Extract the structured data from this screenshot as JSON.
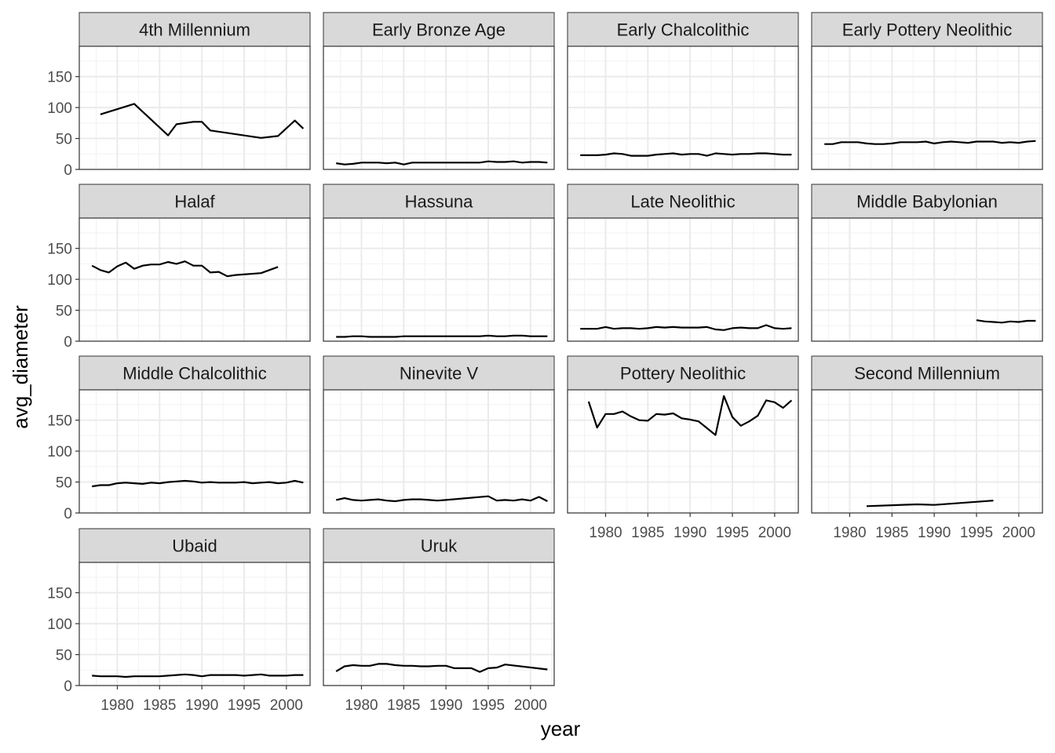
{
  "chart_data": {
    "type": "line",
    "title": "",
    "xlabel": "year",
    "ylabel": "avg_diameter",
    "xlim": [
      1975.5,
      2002.8
    ],
    "ylim": [
      0,
      199
    ],
    "x_ticks": [
      1980,
      1985,
      1990,
      1995,
      2000
    ],
    "y_ticks": [
      0,
      50,
      100,
      150
    ],
    "grid": true,
    "facet_columns": 4,
    "series": [
      {
        "name": "4th Millennium",
        "x": [
          1978,
          1982,
          1986,
          1987,
          1989,
          1990,
          1991,
          1997,
          1999,
          2001,
          2002
        ],
        "y": [
          89,
          106,
          55,
          73,
          77,
          77,
          63,
          51,
          54,
          79,
          66
        ]
      },
      {
        "name": "Early Bronze Age",
        "x": [
          1977,
          1978,
          1979,
          1980,
          1981,
          1982,
          1983,
          1984,
          1985,
          1986,
          1987,
          1988,
          1989,
          1990,
          1991,
          1992,
          1993,
          1994,
          1995,
          1996,
          1997,
          1998,
          1999,
          2000,
          2001,
          2002
        ],
        "y": [
          10,
          8,
          9,
          11,
          11,
          11,
          10,
          11,
          8,
          11,
          11,
          11,
          11,
          11,
          11,
          11,
          11,
          11,
          13,
          12,
          12,
          13,
          11,
          12,
          12,
          11
        ]
      },
      {
        "name": "Early Chalcolithic",
        "x": [
          1977,
          1978,
          1979,
          1980,
          1981,
          1982,
          1983,
          1984,
          1985,
          1986,
          1987,
          1988,
          1989,
          1990,
          1991,
          1992,
          1993,
          1994,
          1995,
          1996,
          1997,
          1998,
          1999,
          2000,
          2001,
          2002
        ],
        "y": [
          23,
          23,
          23,
          24,
          26,
          25,
          22,
          22,
          22,
          24,
          25,
          26,
          24,
          25,
          25,
          22,
          26,
          25,
          24,
          25,
          25,
          26,
          26,
          25,
          24,
          24
        ]
      },
      {
        "name": "Early Pottery Neolithic",
        "x": [
          1977,
          1978,
          1979,
          1980,
          1981,
          1982,
          1983,
          1984,
          1985,
          1986,
          1987,
          1988,
          1989,
          1990,
          1991,
          1992,
          1993,
          1994,
          1995,
          1996,
          1997,
          1998,
          1999,
          2000,
          2001,
          2002
        ],
        "y": [
          41,
          41,
          44,
          44,
          44,
          42,
          41,
          41,
          42,
          44,
          44,
          44,
          45,
          42,
          44,
          45,
          44,
          43,
          45,
          45,
          45,
          43,
          44,
          43,
          45,
          46
        ]
      },
      {
        "name": "Halaf",
        "x": [
          1977,
          1978,
          1979,
          1980,
          1981,
          1982,
          1983,
          1984,
          1985,
          1986,
          1987,
          1988,
          1989,
          1990,
          1991,
          1992,
          1993,
          1994,
          1997,
          1999
        ],
        "y": [
          122,
          115,
          111,
          121,
          127,
          117,
          122,
          124,
          124,
          128,
          125,
          129,
          122,
          122,
          111,
          112,
          105,
          107,
          110,
          120
        ]
      },
      {
        "name": "Hassuna",
        "x": [
          1977,
          1978,
          1979,
          1980,
          1981,
          1982,
          1983,
          1984,
          1985,
          1986,
          1987,
          1988,
          1989,
          1990,
          1991,
          1992,
          1993,
          1994,
          1995,
          1996,
          1997,
          1998,
          1999,
          2000,
          2001,
          2002
        ],
        "y": [
          7,
          7,
          8,
          8,
          7,
          7,
          7,
          7,
          8,
          8,
          8,
          8,
          8,
          8,
          8,
          8,
          8,
          8,
          9,
          8,
          8,
          9,
          9,
          8,
          8,
          8
        ]
      },
      {
        "name": "Late Neolithic",
        "x": [
          1977,
          1978,
          1979,
          1980,
          1981,
          1982,
          1983,
          1984,
          1985,
          1986,
          1987,
          1988,
          1989,
          1990,
          1991,
          1992,
          1993,
          1994,
          1995,
          1996,
          1997,
          1998,
          1999,
          2000,
          2001,
          2002
        ],
        "y": [
          20,
          20,
          20,
          23,
          20,
          21,
          21,
          20,
          21,
          23,
          22,
          23,
          22,
          22,
          22,
          23,
          19,
          18,
          21,
          22,
          21,
          21,
          26,
          21,
          20,
          21
        ]
      },
      {
        "name": "Middle Babylonian",
        "x": [
          1995,
          1996,
          1997,
          1998,
          1999,
          2000,
          2001,
          2002
        ],
        "y": [
          34,
          32,
          31,
          30,
          32,
          31,
          33,
          33
        ]
      },
      {
        "name": "Middle Chalcolithic",
        "x": [
          1977,
          1978,
          1979,
          1980,
          1981,
          1982,
          1983,
          1984,
          1985,
          1986,
          1987,
          1988,
          1989,
          1990,
          1991,
          1992,
          1993,
          1994,
          1995,
          1996,
          1997,
          1998,
          1999,
          2000,
          2001,
          2002
        ],
        "y": [
          43,
          45,
          45,
          48,
          49,
          48,
          47,
          49,
          48,
          50,
          51,
          52,
          51,
          49,
          50,
          49,
          49,
          49,
          50,
          48,
          49,
          50,
          48,
          49,
          52,
          49
        ]
      },
      {
        "name": "Ninevite V",
        "x": [
          1977,
          1978,
          1979,
          1980,
          1981,
          1982,
          1983,
          1984,
          1985,
          1986,
          1987,
          1988,
          1989,
          1990,
          1995,
          1996,
          1997,
          1998,
          1999,
          2000,
          2001,
          2002
        ],
        "y": [
          21,
          24,
          21,
          20,
          21,
          22,
          20,
          19,
          21,
          22,
          22,
          21,
          20,
          21,
          27,
          20,
          21,
          20,
          22,
          20,
          26,
          19
        ]
      },
      {
        "name": "Pottery Neolithic",
        "x": [
          1978,
          1979,
          1980,
          1981,
          1982,
          1983,
          1984,
          1985,
          1986,
          1987,
          1988,
          1989,
          1990,
          1991,
          1992,
          1993,
          1994,
          1995,
          1996,
          1997,
          1998,
          1999,
          2000,
          2001,
          2002
        ],
        "y": [
          180,
          138,
          160,
          160,
          164,
          156,
          150,
          149,
          160,
          159,
          161,
          153,
          151,
          148,
          137,
          126,
          189,
          155,
          141,
          148,
          157,
          182,
          179,
          170,
          182
        ]
      },
      {
        "name": "Second Millennium",
        "x": [
          1982,
          1988,
          1990,
          1997
        ],
        "y": [
          11,
          14,
          13,
          20
        ]
      },
      {
        "name": "Ubaid",
        "x": [
          1977,
          1978,
          1979,
          1980,
          1981,
          1982,
          1983,
          1984,
          1985,
          1986,
          1987,
          1988,
          1989,
          1990,
          1991,
          1992,
          1993,
          1994,
          1995,
          1996,
          1997,
          1998,
          1999,
          2000,
          2001,
          2002
        ],
        "y": [
          16,
          15,
          15,
          15,
          14,
          15,
          15,
          15,
          15,
          16,
          17,
          18,
          17,
          15,
          17,
          17,
          17,
          17,
          16,
          17,
          18,
          16,
          16,
          16,
          17,
          17
        ]
      },
      {
        "name": "Uruk",
        "x": [
          1977,
          1978,
          1979,
          1980,
          1981,
          1982,
          1983,
          1984,
          1985,
          1986,
          1987,
          1988,
          1989,
          1990,
          1991,
          1992,
          1993,
          1994,
          1995,
          1996,
          1997,
          2002
        ],
        "y": [
          23,
          31,
          33,
          32,
          32,
          35,
          35,
          33,
          32,
          32,
          31,
          31,
          32,
          32,
          28,
          28,
          28,
          22,
          28,
          29,
          34,
          26
        ]
      }
    ]
  }
}
